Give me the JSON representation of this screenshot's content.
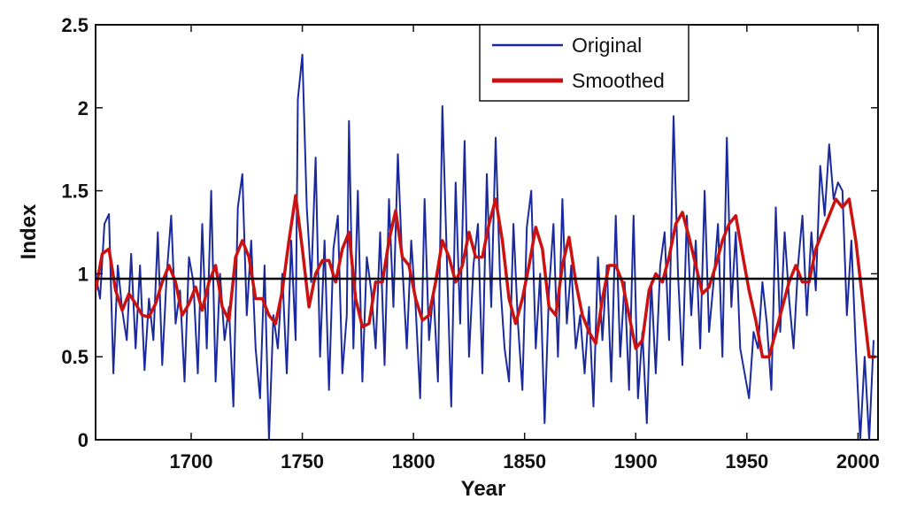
{
  "chart_data": {
    "type": "line",
    "title": "",
    "xlabel": "Year",
    "ylabel": "Index",
    "xlim": [
      1657,
      2009
    ],
    "ylim": [
      0,
      2.5
    ],
    "x_ticks": [
      1700,
      1750,
      1800,
      1850,
      1900,
      1950,
      2000
    ],
    "x_tick_labels": [
      "1700",
      "1750",
      "1800",
      "1850",
      "1900",
      "1950",
      "2000"
    ],
    "y_ticks": [
      0,
      0.5,
      1,
      1.5,
      2,
      2.5
    ],
    "y_tick_labels": [
      "0",
      "0.5",
      "1",
      "1.5",
      "2",
      "2.5"
    ],
    "grid": false,
    "legend_position": "top-center",
    "reference_line": {
      "y": 0.97,
      "color": "#000000"
    },
    "series": [
      {
        "name": "Original",
        "color": "#1a2a9e",
        "x": [
          1657,
          1659,
          1661,
          1663,
          1665,
          1667,
          1669,
          1671,
          1673,
          1675,
          1677,
          1679,
          1681,
          1683,
          1685,
          1687,
          1689,
          1691,
          1693,
          1695,
          1697,
          1699,
          1701,
          1703,
          1705,
          1707,
          1709,
          1711,
          1713,
          1715,
          1717,
          1719,
          1721,
          1723,
          1725,
          1727,
          1729,
          1731,
          1733,
          1735,
          1737,
          1739,
          1741,
          1743,
          1745,
          1747,
          1748,
          1750,
          1752,
          1754,
          1756,
          1758,
          1760,
          1762,
          1764,
          1766,
          1768,
          1770,
          1771,
          1773,
          1775,
          1777,
          1779,
          1781,
          1783,
          1785,
          1787,
          1789,
          1791,
          1793,
          1795,
          1797,
          1799,
          1801,
          1803,
          1805,
          1807,
          1809,
          1811,
          1813,
          1815,
          1817,
          1819,
          1821,
          1823,
          1825,
          1827,
          1829,
          1831,
          1833,
          1835,
          1837,
          1839,
          1841,
          1843,
          1845,
          1847,
          1849,
          1851,
          1853,
          1855,
          1857,
          1859,
          1861,
          1863,
          1865,
          1867,
          1869,
          1871,
          1873,
          1875,
          1877,
          1879,
          1881,
          1883,
          1885,
          1887,
          1889,
          1891,
          1893,
          1895,
          1897,
          1899,
          1901,
          1903,
          1905,
          1907,
          1909,
          1911,
          1913,
          1915,
          1917,
          1919,
          1921,
          1923,
          1925,
          1927,
          1929,
          1931,
          1933,
          1935,
          1937,
          1939,
          1941,
          1943,
          1945,
          1947,
          1949,
          1951,
          1953,
          1955,
          1957,
          1959,
          1961,
          1963,
          1965,
          1967,
          1969,
          1971,
          1973,
          1975,
          1977,
          1979,
          1981,
          1983,
          1985,
          1987,
          1989,
          1991,
          1993,
          1995,
          1997,
          1999,
          2001,
          2003,
          2005,
          2007
        ],
        "y": [
          1.0,
          0.85,
          1.3,
          1.36,
          0.4,
          1.05,
          0.78,
          0.6,
          1.12,
          0.55,
          1.05,
          0.42,
          0.85,
          0.6,
          1.25,
          0.45,
          1.0,
          1.35,
          0.7,
          0.9,
          0.35,
          1.1,
          0.95,
          0.4,
          1.3,
          0.55,
          1.5,
          0.35,
          1.0,
          0.6,
          0.8,
          0.2,
          1.4,
          1.6,
          0.75,
          1.2,
          0.55,
          0.25,
          1.05,
          0.0,
          0.75,
          0.55,
          1.0,
          0.4,
          1.2,
          0.6,
          2.05,
          2.32,
          1.4,
          0.95,
          1.7,
          0.5,
          1.2,
          0.3,
          1.15,
          1.35,
          0.4,
          0.75,
          1.92,
          0.55,
          1.5,
          0.35,
          1.1,
          0.9,
          0.55,
          1.25,
          0.45,
          1.45,
          0.8,
          1.72,
          1.05,
          0.55,
          1.2,
          0.8,
          0.25,
          1.45,
          0.6,
          0.9,
          0.35,
          2.01,
          1.1,
          0.2,
          1.55,
          0.7,
          1.8,
          0.5,
          1.05,
          1.3,
          0.4,
          1.6,
          0.8,
          1.82,
          0.95,
          0.55,
          0.35,
          1.3,
          0.7,
          0.3,
          1.28,
          1.5,
          0.55,
          1.0,
          0.1,
          0.9,
          1.3,
          0.5,
          1.45,
          0.7,
          1.05,
          0.55,
          0.75,
          0.4,
          0.8,
          0.2,
          1.1,
          0.6,
          1.05,
          0.35,
          1.35,
          0.5,
          0.95,
          0.3,
          1.35,
          0.25,
          0.65,
          0.1,
          0.95,
          0.4,
          1.05,
          1.25,
          0.6,
          1.95,
          1.0,
          0.45,
          1.35,
          0.75,
          1.2,
          0.55,
          1.5,
          0.65,
          0.95,
          1.3,
          0.5,
          1.82,
          0.8,
          1.25,
          0.55,
          0.4,
          0.25,
          0.65,
          0.55,
          0.95,
          0.7,
          0.3,
          1.4,
          0.65,
          1.25,
          0.85,
          0.55,
          1.05,
          1.35,
          0.75,
          1.25,
          0.9,
          1.65,
          1.35,
          1.78,
          1.45,
          1.55,
          1.5,
          0.75,
          1.2,
          0.55,
          0.0,
          0.5,
          0.0,
          0.6
        ]
      },
      {
        "name": "Smoothed",
        "color": "#cc1111",
        "x": [
          1657,
          1660,
          1663,
          1666,
          1669,
          1672,
          1675,
          1678,
          1681,
          1684,
          1687,
          1690,
          1693,
          1696,
          1699,
          1702,
          1705,
          1708,
          1711,
          1714,
          1717,
          1720,
          1723,
          1726,
          1729,
          1732,
          1735,
          1738,
          1741,
          1744,
          1747,
          1750,
          1753,
          1756,
          1759,
          1762,
          1765,
          1768,
          1771,
          1774,
          1777,
          1780,
          1783,
          1786,
          1789,
          1792,
          1795,
          1798,
          1801,
          1804,
          1807,
          1810,
          1813,
          1816,
          1819,
          1822,
          1825,
          1828,
          1831,
          1834,
          1837,
          1840,
          1843,
          1846,
          1849,
          1852,
          1855,
          1858,
          1861,
          1864,
          1867,
          1870,
          1873,
          1876,
          1879,
          1882,
          1885,
          1888,
          1891,
          1894,
          1897,
          1900,
          1903,
          1906,
          1909,
          1912,
          1915,
          1918,
          1921,
          1924,
          1927,
          1930,
          1933,
          1936,
          1939,
          1942,
          1945,
          1948,
          1951,
          1954,
          1957,
          1960,
          1963,
          1966,
          1969,
          1972,
          1975,
          1978,
          1981,
          1984,
          1987,
          1990,
          1993,
          1996,
          1999,
          2002,
          2005,
          2008
        ],
        "y": [
          0.9,
          1.12,
          1.15,
          0.9,
          0.78,
          0.88,
          0.82,
          0.75,
          0.74,
          0.82,
          0.95,
          1.05,
          0.95,
          0.75,
          0.82,
          0.92,
          0.78,
          0.95,
          1.05,
          0.8,
          0.72,
          1.1,
          1.2,
          1.1,
          0.85,
          0.85,
          0.75,
          0.7,
          0.9,
          1.2,
          1.47,
          1.15,
          0.8,
          1.0,
          1.08,
          1.08,
          0.95,
          1.15,
          1.25,
          0.85,
          0.68,
          0.7,
          0.95,
          0.95,
          1.2,
          1.38,
          1.1,
          1.05,
          0.85,
          0.72,
          0.75,
          0.95,
          1.2,
          1.1,
          0.95,
          1.05,
          1.25,
          1.1,
          1.1,
          1.3,
          1.45,
          1.2,
          0.85,
          0.7,
          0.85,
          1.05,
          1.28,
          1.15,
          0.8,
          0.75,
          1.05,
          1.22,
          0.95,
          0.75,
          0.65,
          0.58,
          0.85,
          1.05,
          1.05,
          0.95,
          0.75,
          0.55,
          0.6,
          0.9,
          1.0,
          0.95,
          1.1,
          1.3,
          1.37,
          1.22,
          1.05,
          0.88,
          0.92,
          1.05,
          1.2,
          1.3,
          1.35,
          1.12,
          0.9,
          0.72,
          0.5,
          0.5,
          0.65,
          0.8,
          0.95,
          1.05,
          0.95,
          0.95,
          1.15,
          1.25,
          1.35,
          1.45,
          1.4,
          1.45,
          1.2,
          0.85,
          0.5,
          0.5
        ]
      }
    ]
  }
}
